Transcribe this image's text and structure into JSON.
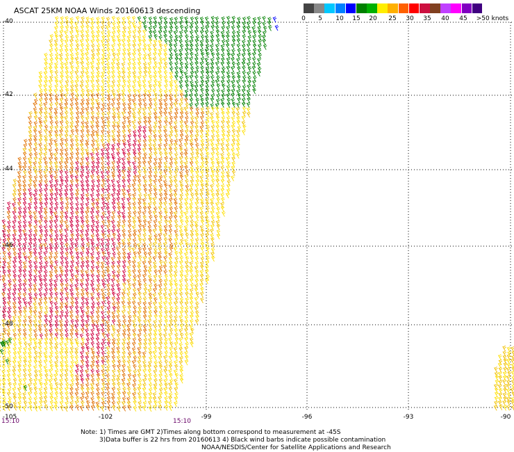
{
  "header": {
    "title": "ASCAT 25KM NOAA Winds 20160613 descending"
  },
  "legend": {
    "colors": [
      "#444444",
      "#888888",
      "#00c8ff",
      "#0080ff",
      "#0000ff",
      "#008000",
      "#00b000",
      "#ffee00",
      "#ffb000",
      "#ff6000",
      "#ff0000",
      "#cc1040",
      "#804020",
      "#c040ff",
      "#ff00ff",
      "#8000c0",
      "#400080"
    ],
    "labels": [
      "0",
      "5",
      "10",
      "15",
      "20",
      "25",
      "30",
      "35",
      "40",
      "45",
      ">50 knots"
    ]
  },
  "axes": {
    "lat_labels": [
      "-40",
      "-42",
      "-44",
      "-46",
      "-48",
      "-50"
    ],
    "lon_labels": [
      "-105",
      "-102",
      "-99",
      "-96",
      "-93",
      "-90"
    ]
  },
  "swath_times": [
    "15:10",
    "15:10"
  ],
  "notes": [
    "Note: 1) Times are GMT 2)Times along bottom correspond to measurement at -45S",
    "3)Data buffer is 22 hrs from 20160613 4) Black wind barbs indicate possible contamination",
    "NOAA/NESDIS/Center for Satellite Applications and Research"
  ],
  "wind_colors": {
    "green": "#008000",
    "yellow": "#ffe000",
    "gold": "#f0c000",
    "orange": "#e07000",
    "red": "#d00040",
    "blue": "#0000ff"
  }
}
